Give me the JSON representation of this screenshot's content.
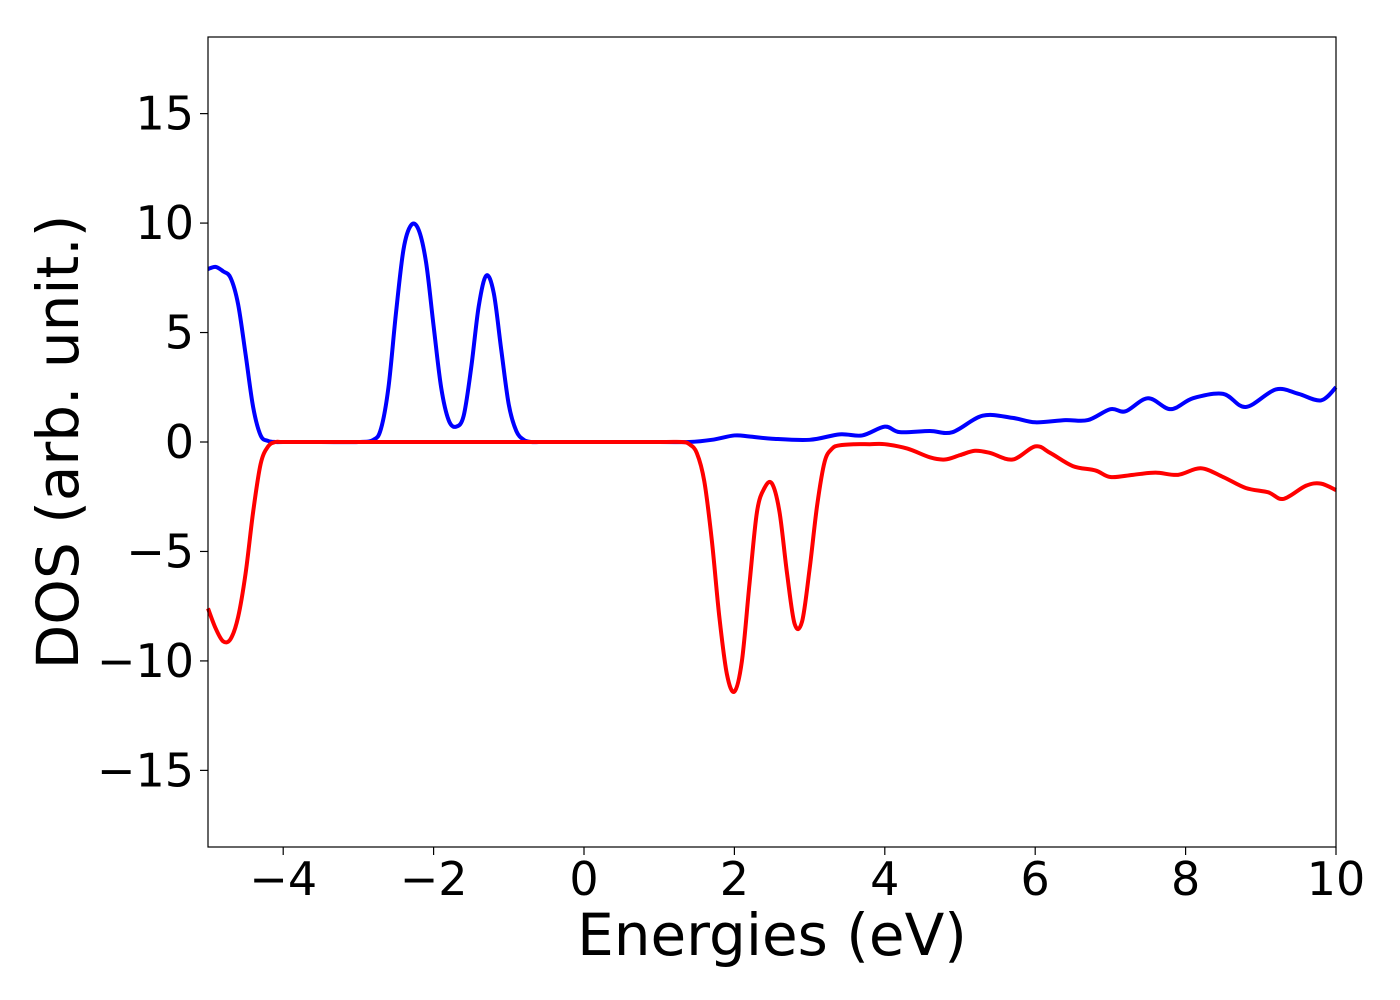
{
  "chart_data": {
    "type": "line",
    "title": "",
    "xlabel": "Energies (eV)",
    "ylabel": "DOS (arb. unit.)",
    "xlim": [
      -5,
      10
    ],
    "ylim": [
      -18.5,
      18.5
    ],
    "xticks": [
      -4,
      -2,
      0,
      2,
      4,
      6,
      8,
      10
    ],
    "yticks": [
      -15,
      -10,
      -5,
      0,
      5,
      10,
      15
    ],
    "xtick_labels": [
      "−4",
      "−2",
      "0",
      "2",
      "4",
      "6",
      "8",
      "10"
    ],
    "ytick_labels": [
      "−15",
      "−10",
      "−5",
      "0",
      "5",
      "10",
      "15"
    ],
    "grid": false,
    "legend": "none",
    "series": [
      {
        "color": "#0000ff",
        "x": [
          -5.0,
          -4.9,
          -4.8,
          -4.7,
          -4.6,
          -4.5,
          -4.4,
          -4.3,
          -4.2,
          -4.1,
          -4.0,
          -3.5,
          -3.0,
          -2.8,
          -2.7,
          -2.6,
          -2.5,
          -2.4,
          -2.3,
          -2.2,
          -2.1,
          -2.0,
          -1.9,
          -1.8,
          -1.7,
          -1.6,
          -1.5,
          -1.4,
          -1.3,
          -1.2,
          -1.1,
          -1.0,
          -0.9,
          -0.8,
          -0.7,
          -0.6,
          -0.5,
          0.0,
          1.0,
          1.4,
          1.7,
          2.0,
          2.2,
          2.5,
          3.0,
          3.4,
          3.7,
          4.0,
          4.2,
          4.6,
          4.9,
          5.3,
          5.7,
          6.0,
          6.4,
          6.7,
          7.0,
          7.2,
          7.5,
          7.8,
          8.1,
          8.5,
          8.8,
          9.2,
          9.5,
          9.8,
          10.0
        ],
        "y": [
          7.9,
          8.0,
          7.8,
          7.5,
          6.3,
          4.0,
          1.6,
          0.3,
          0.05,
          0.0,
          0.0,
          0.0,
          0.0,
          0.1,
          0.6,
          2.5,
          5.9,
          8.8,
          9.9,
          9.7,
          8.2,
          5.3,
          2.5,
          1.0,
          0.7,
          1.2,
          3.4,
          6.2,
          7.6,
          6.8,
          4.2,
          1.7,
          0.5,
          0.1,
          0.0,
          0.0,
          0.0,
          0.0,
          0.0,
          0.0,
          0.1,
          0.3,
          0.25,
          0.15,
          0.1,
          0.35,
          0.3,
          0.7,
          0.45,
          0.5,
          0.45,
          1.2,
          1.1,
          0.9,
          1.0,
          1.0,
          1.5,
          1.4,
          2.0,
          1.5,
          2.0,
          2.2,
          1.6,
          2.4,
          2.2,
          1.9,
          2.5
        ]
      },
      {
        "color": "#ff0000",
        "x": [
          -5.0,
          -4.9,
          -4.8,
          -4.7,
          -4.6,
          -4.5,
          -4.4,
          -4.3,
          -4.2,
          -4.1,
          -4.0,
          -3.5,
          -3.0,
          -2.0,
          0.0,
          1.0,
          1.3,
          1.4,
          1.5,
          1.6,
          1.7,
          1.8,
          1.9,
          2.0,
          2.1,
          2.2,
          2.3,
          2.4,
          2.5,
          2.6,
          2.7,
          2.8,
          2.9,
          3.0,
          3.1,
          3.2,
          3.3,
          3.4,
          3.6,
          3.8,
          4.0,
          4.3,
          4.6,
          4.8,
          5.0,
          5.2,
          5.4,
          5.7,
          6.0,
          6.2,
          6.5,
          6.8,
          7.0,
          7.3,
          7.6,
          7.9,
          8.2,
          8.5,
          8.8,
          9.1,
          9.3,
          9.6,
          9.8,
          10.0
        ],
        "y": [
          -7.6,
          -8.5,
          -9.1,
          -9.0,
          -8.0,
          -6.0,
          -3.2,
          -1.0,
          -0.2,
          0.0,
          0.0,
          0.0,
          0.0,
          0.0,
          0.0,
          0.0,
          0.0,
          -0.1,
          -0.5,
          -1.8,
          -4.5,
          -8.0,
          -10.6,
          -11.4,
          -10.0,
          -6.5,
          -3.2,
          -2.1,
          -1.9,
          -3.2,
          -6.0,
          -8.3,
          -8.2,
          -5.8,
          -2.9,
          -0.9,
          -0.3,
          -0.15,
          -0.1,
          -0.1,
          -0.1,
          -0.3,
          -0.7,
          -0.8,
          -0.6,
          -0.4,
          -0.5,
          -0.8,
          -0.2,
          -0.5,
          -1.1,
          -1.3,
          -1.6,
          -1.5,
          -1.4,
          -1.5,
          -1.2,
          -1.6,
          -2.1,
          -2.3,
          -2.6,
          -2.0,
          -1.9,
          -2.2
        ]
      }
    ]
  }
}
